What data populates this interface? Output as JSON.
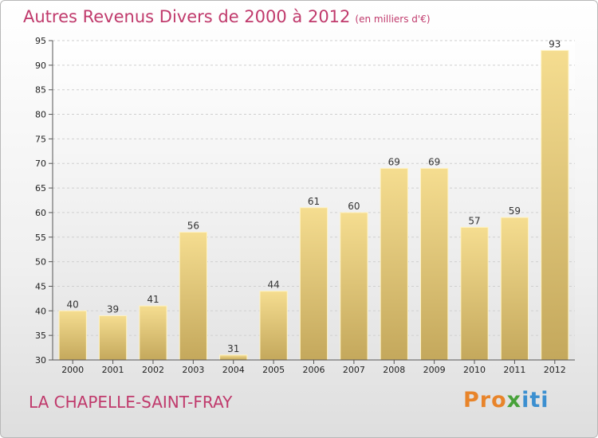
{
  "header": {
    "title": "Autres Revenus Divers de 2000 à 2012",
    "unit": "(en milliers d'€)"
  },
  "footer": {
    "place": "LA CHAPELLE-SAINT-FRAY",
    "logo": "Proxiti"
  },
  "colors": {
    "title": "#c03a6c",
    "bar_light": "#f5dd90",
    "bar_dark": "#c4a85c"
  },
  "chart_data": {
    "type": "bar",
    "title": "Autres Revenus Divers de 2000 à 2012",
    "categories": [
      "2000",
      "2001",
      "2002",
      "2003",
      "2004",
      "2005",
      "2006",
      "2007",
      "2008",
      "2009",
      "2010",
      "2011",
      "2012"
    ],
    "values": [
      40,
      39,
      41,
      56,
      31,
      44,
      61,
      60,
      69,
      69,
      57,
      59,
      93
    ],
    "ylim": [
      30,
      95
    ],
    "yticks": [
      30,
      35,
      40,
      45,
      50,
      55,
      60,
      65,
      70,
      75,
      80,
      85,
      90,
      95
    ],
    "grid": "horizontal"
  }
}
